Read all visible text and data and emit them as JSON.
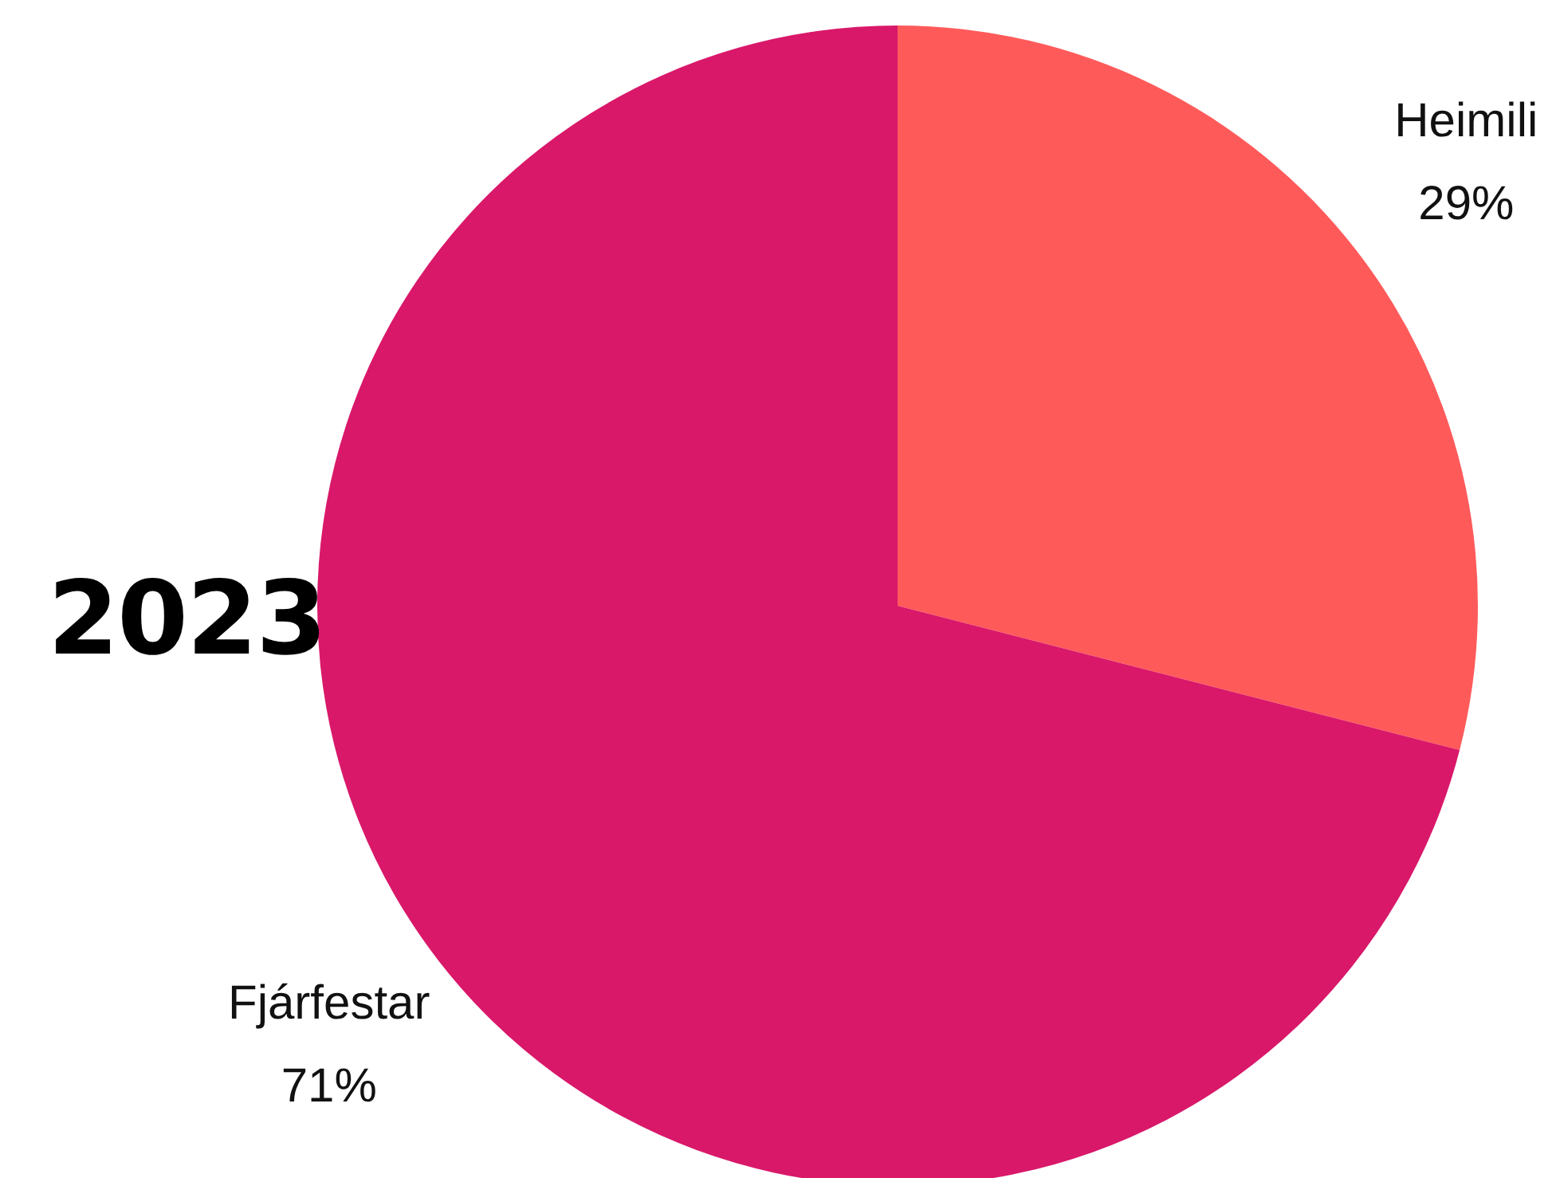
{
  "chart_data": {
    "type": "pie",
    "title": "2023",
    "categories": [
      "Heimili",
      "Fjárfestar"
    ],
    "values": [
      29,
      71
    ],
    "value_labels": [
      "29%",
      "71%"
    ],
    "colors": [
      "#ff5a5a",
      "#d9186a"
    ],
    "legend": false
  }
}
